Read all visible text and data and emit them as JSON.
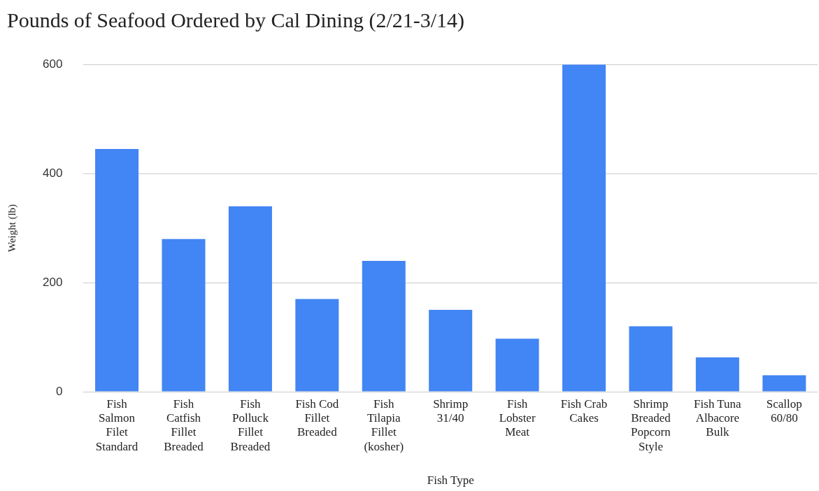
{
  "chart_data": {
    "type": "bar",
    "title": "Pounds of Seafood Ordered by Cal Dining (2/21-3/14)",
    "xlabel": "Fish Type",
    "ylabel": "Weight (lb)",
    "categories": [
      "Fish Salmon Filet Standard",
      "Fish Catfish Fillet Breaded",
      "Fish Polluck Fillet Breaded",
      "Fish Cod Fillet Breaded",
      "Fish Tilapia Fillet (kosher)",
      "Shrimp 31/40",
      "Fish Lobster Meat",
      "Fish Crab Cakes",
      "Shrimp Breaded Popcorn Style",
      "Fish Tuna Albacore Bulk",
      "Scallop 60/80"
    ],
    "values": [
      445,
      280,
      340,
      170,
      240,
      150,
      97,
      600,
      120,
      63,
      30
    ],
    "color": "#4285f4",
    "ylim": [
      0,
      600
    ],
    "yticks": [
      0,
      200,
      400,
      600
    ],
    "grid": "y",
    "legend": false
  }
}
